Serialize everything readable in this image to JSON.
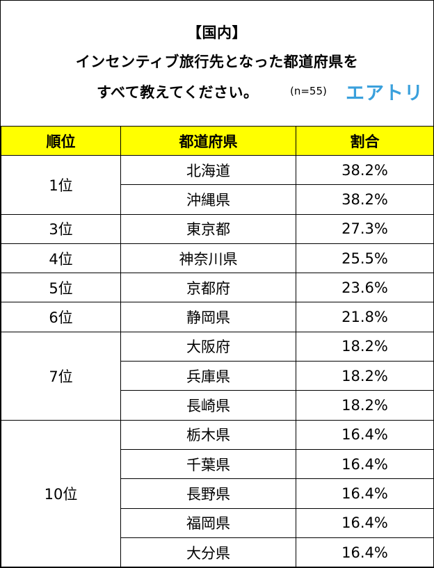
{
  "header": {
    "line1": "【国内】",
    "line2": "インセンティブ旅行先となった都道府県を",
    "line3": "すべて教えてください。",
    "sample": "(n=55)",
    "logo": "エアトリ"
  },
  "chart_data": {
    "type": "table",
    "columns": [
      "順位",
      "都道府県",
      "割合"
    ],
    "groups": [
      {
        "rank": "1位",
        "rows": [
          {
            "pref": "北海道",
            "pct": "38.2%"
          },
          {
            "pref": "沖縄県",
            "pct": "38.2%"
          }
        ]
      },
      {
        "rank": "3位",
        "rows": [
          {
            "pref": "東京都",
            "pct": "27.3%"
          }
        ]
      },
      {
        "rank": "4位",
        "rows": [
          {
            "pref": "神奈川県",
            "pct": "25.5%"
          }
        ]
      },
      {
        "rank": "5位",
        "rows": [
          {
            "pref": "京都府",
            "pct": "23.6%"
          }
        ]
      },
      {
        "rank": "6位",
        "rows": [
          {
            "pref": "静岡県",
            "pct": "21.8%"
          }
        ]
      },
      {
        "rank": "7位",
        "rows": [
          {
            "pref": "大阪府",
            "pct": "18.2%"
          },
          {
            "pref": "兵庫県",
            "pct": "18.2%"
          },
          {
            "pref": "長崎県",
            "pct": "18.2%"
          }
        ]
      },
      {
        "rank": "10位",
        "rows": [
          {
            "pref": "栃木県",
            "pct": "16.4%"
          },
          {
            "pref": "千葉県",
            "pct": "16.4%"
          },
          {
            "pref": "長野県",
            "pct": "16.4%"
          },
          {
            "pref": "福岡県",
            "pct": "16.4%"
          },
          {
            "pref": "大分県",
            "pct": "16.4%"
          }
        ]
      }
    ]
  },
  "colors": {
    "header_bg": "#ffff00",
    "logo": "#3aa0dc"
  }
}
